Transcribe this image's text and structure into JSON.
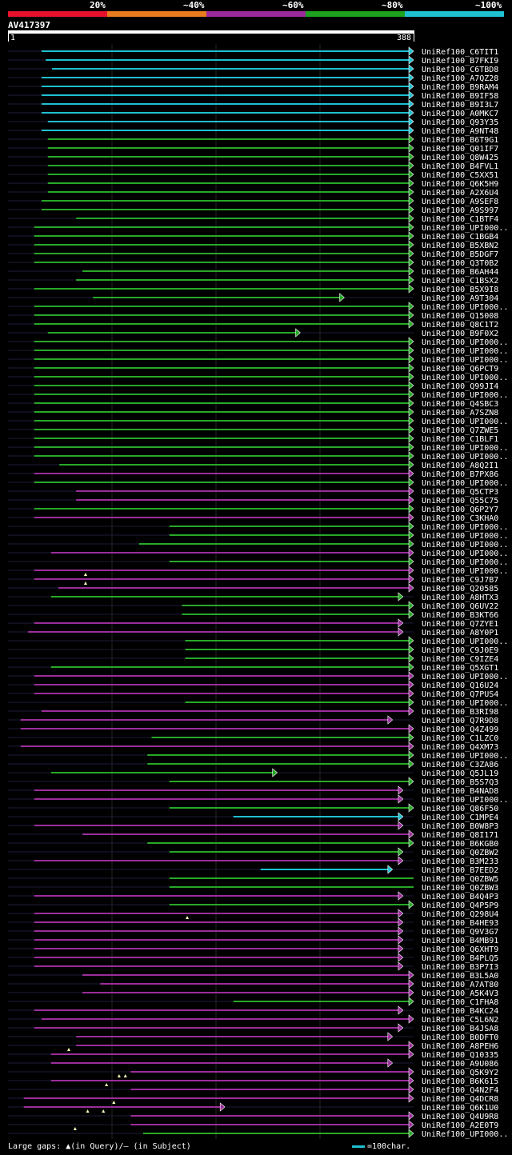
{
  "legend": {
    "colors": [
      "#e8112d",
      "#e87b1e",
      "#9b2a9b",
      "#1ea11e",
      "#1fc0d0"
    ],
    "labels": [
      "20%",
      "~40%",
      "~60%",
      "~80%",
      "~100%"
    ]
  },
  "query": {
    "name": "AV417397",
    "start": "1",
    "end": "388",
    "length": 388
  },
  "identity_colors": {
    "cyan": "#1fc0d0",
    "green": "#28a828",
    "magenta": "#9b2d9b",
    "dark": "#1c1c3a",
    "gap": "#ffffc0"
  },
  "hits": [
    {
      "name": "UniRef100_C6TIT1",
      "s": 33,
      "e": 388,
      "c": "cyan",
      "f": 1
    },
    {
      "name": "UniRef100_B7FKI9",
      "s": 37,
      "e": 388,
      "c": "cyan",
      "f": 1
    },
    {
      "name": "UniRef100_C6TBD8",
      "s": 43,
      "e": 388,
      "c": "cyan",
      "f": 1
    },
    {
      "name": "UniRef100_A7QZ28",
      "s": 33,
      "e": 388,
      "c": "cyan",
      "f": 1
    },
    {
      "name": "UniRef100_B9RAM4",
      "s": 33,
      "e": 388,
      "c": "cyan",
      "f": 1
    },
    {
      "name": "UniRef100_B9IF58",
      "s": 33,
      "e": 388,
      "c": "cyan",
      "f": 1
    },
    {
      "name": "UniRef100_B9I3L7",
      "s": 33,
      "e": 388,
      "c": "cyan",
      "f": 1
    },
    {
      "name": "UniRef100_A0MKC7",
      "s": 33,
      "e": 388,
      "c": "cyan",
      "f": 1
    },
    {
      "name": "UniRef100_Q93Y35",
      "s": 39,
      "e": 388,
      "c": "cyan",
      "f": 1
    },
    {
      "name": "UniRef100_A9NT48",
      "s": 33,
      "e": 388,
      "c": "cyan",
      "f": 1
    },
    {
      "name": "UniRef100_B6T9G1",
      "s": 39,
      "e": 388,
      "c": "green",
      "f": 1
    },
    {
      "name": "UniRef100_Q01IF7",
      "s": 39,
      "e": 388,
      "c": "green",
      "f": 1
    },
    {
      "name": "UniRef100_Q8W425",
      "s": 39,
      "e": 388,
      "c": "green",
      "f": 1
    },
    {
      "name": "UniRef100_B4FVL1",
      "s": 39,
      "e": 388,
      "c": "green",
      "f": 1
    },
    {
      "name": "UniRef100_C5XX51",
      "s": 39,
      "e": 388,
      "c": "green",
      "f": 1
    },
    {
      "name": "UniRef100_Q6K5H9",
      "s": 39,
      "e": 388,
      "c": "green",
      "f": 1
    },
    {
      "name": "UniRef100_A2X6U4",
      "s": 39,
      "e": 388,
      "c": "green",
      "f": 1
    },
    {
      "name": "UniRef100_A9SEF8",
      "s": 33,
      "e": 388,
      "c": "green",
      "f": 1
    },
    {
      "name": "UniRef100_A9S997",
      "s": 33,
      "e": 388,
      "c": "green",
      "f": 1
    },
    {
      "name": "UniRef100_C1BTF4",
      "s": 66,
      "e": 388,
      "c": "green",
      "f": 1
    },
    {
      "name": "UniRef100_UPI000..",
      "s": 26,
      "e": 388,
      "c": "green",
      "f": 1
    },
    {
      "name": "UniRef100_C1BGB4",
      "s": 26,
      "e": 388,
      "c": "green",
      "f": 1
    },
    {
      "name": "UniRef100_B5XBN2",
      "s": 26,
      "e": 388,
      "c": "green",
      "f": 1
    },
    {
      "name": "UniRef100_B5DGF7",
      "s": 26,
      "e": 388,
      "c": "green",
      "f": 1
    },
    {
      "name": "UniRef100_Q3T0B2",
      "s": 26,
      "e": 388,
      "c": "green",
      "f": 1
    },
    {
      "name": "UniRef100_B6AH44",
      "s": 72,
      "e": 388,
      "c": "green",
      "f": 1
    },
    {
      "name": "UniRef100_C1BSX2",
      "s": 66,
      "e": 388,
      "c": "green",
      "f": 1
    },
    {
      "name": "UniRef100_B5X9I8",
      "s": 26,
      "e": 388,
      "c": "green",
      "f": 1
    },
    {
      "name": "UniRef100_A9T304",
      "s": 82,
      "e": 322,
      "c": "green",
      "f": 1
    },
    {
      "name": "UniRef100_UPI000..",
      "s": 26,
      "e": 388,
      "c": "green",
      "f": 1
    },
    {
      "name": "UniRef100_Q15008",
      "s": 26,
      "e": 388,
      "c": "green",
      "f": 1
    },
    {
      "name": "UniRef100_Q8C1T2",
      "s": 26,
      "e": 388,
      "c": "green",
      "f": 1
    },
    {
      "name": "UniRef100_B9F0X2",
      "s": 39,
      "e": 280,
      "c": "green",
      "f": 1
    },
    {
      "name": "UniRef100_UPI000..",
      "s": 26,
      "e": 388,
      "c": "green",
      "f": 1
    },
    {
      "name": "UniRef100_UPI000..",
      "s": 26,
      "e": 388,
      "c": "green",
      "f": 1
    },
    {
      "name": "UniRef100_UPI000..",
      "s": 26,
      "e": 388,
      "c": "green",
      "f": 1
    },
    {
      "name": "UniRef100_Q6PCT9",
      "s": 26,
      "e": 388,
      "c": "green",
      "f": 1
    },
    {
      "name": "UniRef100_UPI000..",
      "s": 26,
      "e": 388,
      "c": "green",
      "f": 1
    },
    {
      "name": "UniRef100_Q99JI4",
      "s": 26,
      "e": 388,
      "c": "green",
      "f": 1
    },
    {
      "name": "UniRef100_UPI000..",
      "s": 26,
      "e": 388,
      "c": "green",
      "f": 1
    },
    {
      "name": "UniRef100_Q4SBC3",
      "s": 26,
      "e": 388,
      "c": "green",
      "f": 1
    },
    {
      "name": "UniRef100_A7SZN8",
      "s": 26,
      "e": 388,
      "c": "green",
      "f": 1
    },
    {
      "name": "UniRef100_UPI000..",
      "s": 26,
      "e": 388,
      "c": "green",
      "f": 1
    },
    {
      "name": "UniRef100_Q7ZWE5",
      "s": 26,
      "e": 388,
      "c": "green",
      "f": 1
    },
    {
      "name": "UniRef100_C1BLF1",
      "s": 26,
      "e": 388,
      "c": "green",
      "f": 1
    },
    {
      "name": "UniRef100_UPI000..",
      "s": 26,
      "e": 388,
      "c": "green",
      "f": 1
    },
    {
      "name": "UniRef100_UPI000..",
      "s": 26,
      "e": 388,
      "c": "green",
      "f": 1
    },
    {
      "name": "UniRef100_A8Q2I1",
      "s": 50,
      "e": 388,
      "c": "green",
      "f": 1
    },
    {
      "name": "UniRef100_B7PX86",
      "s": 26,
      "e": 388,
      "c": "magenta",
      "f": 1
    },
    {
      "name": "UniRef100_UPI000..",
      "s": 26,
      "e": 388,
      "c": "green",
      "f": 1
    },
    {
      "name": "UniRef100_Q5CTP3",
      "s": 66,
      "e": 388,
      "c": "magenta",
      "f": 1
    },
    {
      "name": "UniRef100_Q55C75",
      "s": 66,
      "e": 388,
      "c": "magenta",
      "f": 1
    },
    {
      "name": "UniRef100_Q6P2Y7",
      "s": 26,
      "e": 388,
      "c": "green",
      "f": 1
    },
    {
      "name": "UniRef100_C3KHA0",
      "s": 26,
      "e": 388,
      "c": "magenta",
      "f": 1
    },
    {
      "name": "UniRef100_UPI000..",
      "s": 155,
      "e": 388,
      "c": "green",
      "f": 1
    },
    {
      "name": "UniRef100_UPI000..",
      "s": 155,
      "e": 388,
      "c": "green",
      "f": 1
    },
    {
      "name": "UniRef100_UPI000..",
      "s": 126,
      "e": 388,
      "c": "green",
      "f": 1
    },
    {
      "name": "UniRef100_UPI000..",
      "s": 42,
      "e": 388,
      "c": "magenta",
      "f": 1
    },
    {
      "name": "UniRef100_UPI000..",
      "s": 155,
      "e": 388,
      "c": "green",
      "f": 1
    },
    {
      "name": "UniRef100_UPI000..",
      "s": 26,
      "e": 388,
      "c": "magenta",
      "f": 1
    },
    {
      "name": "UniRef100_C9J7B7",
      "s": 26,
      "e": 388,
      "c": "magenta",
      "f": 1
    },
    {
      "name": "UniRef100_Q20585",
      "s": 49,
      "e": 388,
      "c": "magenta",
      "f": 1
    },
    {
      "name": "UniRef100_A8HTX3",
      "s": 42,
      "e": 378,
      "c": "green",
      "f": 1
    },
    {
      "name": "UniRef100_Q6UV22",
      "s": 167,
      "e": 388,
      "c": "green",
      "f": 1
    },
    {
      "name": "UniRef100_B3KT66",
      "s": 167,
      "e": 388,
      "c": "green",
      "f": 1
    },
    {
      "name": "UniRef100_Q7ZYE1",
      "s": 26,
      "e": 378,
      "c": "magenta",
      "f": 1
    },
    {
      "name": "UniRef100_A8Y0P1",
      "s": 20,
      "e": 378,
      "c": "magenta",
      "f": 1
    },
    {
      "name": "UniRef100_UPI000..",
      "s": 170,
      "e": 388,
      "c": "green",
      "f": 1
    },
    {
      "name": "UniRef100_C9J0E9",
      "s": 170,
      "e": 388,
      "c": "green",
      "f": 1
    },
    {
      "name": "UniRef100_C9IZE4",
      "s": 170,
      "e": 388,
      "c": "green",
      "f": 1
    },
    {
      "name": "UniRef100_Q5XGT1",
      "s": 42,
      "e": 388,
      "c": "green",
      "f": 1
    },
    {
      "name": "UniRef100_UPI000..",
      "s": 26,
      "e": 388,
      "c": "magenta",
      "f": 1
    },
    {
      "name": "UniRef100_Q16U24",
      "s": 26,
      "e": 388,
      "c": "magenta",
      "f": 1
    },
    {
      "name": "UniRef100_Q7PUS4",
      "s": 26,
      "e": 388,
      "c": "magenta",
      "f": 1
    },
    {
      "name": "UniRef100_UPI000..",
      "s": 170,
      "e": 388,
      "c": "green",
      "f": 1
    },
    {
      "name": "UniRef100_B3RI98",
      "s": 33,
      "e": 388,
      "c": "magenta",
      "f": 1
    },
    {
      "name": "UniRef100_Q7R9D8",
      "s": 13,
      "e": 368,
      "c": "magenta",
      "f": 1
    },
    {
      "name": "UniRef100_Q4Z499",
      "s": 13,
      "e": 388,
      "c": "magenta",
      "f": 1
    },
    {
      "name": "UniRef100_C1LZC0",
      "s": 138,
      "e": 388,
      "c": "green",
      "f": 1
    },
    {
      "name": "UniRef100_Q4XM73",
      "s": 13,
      "e": 388,
      "c": "magenta",
      "f": 1
    },
    {
      "name": "UniRef100_UPI000..",
      "s": 134,
      "e": 388,
      "c": "green",
      "f": 1
    },
    {
      "name": "UniRef100_C3ZA86",
      "s": 134,
      "e": 388,
      "c": "green",
      "f": 1
    },
    {
      "name": "UniRef100_Q5JL19",
      "s": 42,
      "e": 258,
      "c": "green",
      "f": 1
    },
    {
      "name": "UniRef100_B5S7Q3",
      "s": 155,
      "e": 388,
      "c": "green",
      "f": 1
    },
    {
      "name": "UniRef100_B4NAD8",
      "s": 26,
      "e": 378,
      "c": "magenta",
      "f": 1
    },
    {
      "name": "UniRef100_UPI000..",
      "s": 26,
      "e": 378,
      "c": "magenta",
      "f": 1
    },
    {
      "name": "UniRef100_Q86F50",
      "s": 155,
      "e": 388,
      "c": "green",
      "f": 1
    },
    {
      "name": "UniRef100_C1MPE4",
      "s": 216,
      "e": 378,
      "c": "cyan",
      "f": 1
    },
    {
      "name": "UniRef100_B0W8P3",
      "s": 26,
      "e": 378,
      "c": "magenta",
      "f": 1
    },
    {
      "name": "UniRef100_Q8I171",
      "s": 72,
      "e": 388,
      "c": "magenta",
      "f": 1
    },
    {
      "name": "UniRef100_B6KGB0",
      "s": 134,
      "e": 388,
      "c": "green",
      "f": 1
    },
    {
      "name": "UniRef100_Q0ZBW2",
      "s": 155,
      "e": 378,
      "c": "green",
      "f": 1
    },
    {
      "name": "UniRef100_B3M233",
      "s": 26,
      "e": 378,
      "c": "magenta",
      "f": 1
    },
    {
      "name": "UniRef100_B7EED2",
      "s": 242,
      "e": 368,
      "c": "cyan",
      "f": 1
    },
    {
      "name": "UniRef100_Q0ZBW5",
      "s": 155,
      "e": 388,
      "c": "green",
      "f": 0
    },
    {
      "name": "UniRef100_Q0ZBW3",
      "s": 155,
      "e": 388,
      "c": "green",
      "f": 0
    },
    {
      "name": "UniRef100_B4Q4P3",
      "s": 26,
      "e": 378,
      "c": "magenta",
      "f": 1
    },
    {
      "name": "UniRef100_Q4P5P9",
      "s": 155,
      "e": 388,
      "c": "green",
      "f": 1
    },
    {
      "name": "UniRef100_Q298U4",
      "s": 26,
      "e": 378,
      "c": "magenta",
      "f": 1
    },
    {
      "name": "UniRef100_B4HE93",
      "s": 26,
      "e": 378,
      "c": "magenta",
      "f": 1
    },
    {
      "name": "UniRef100_Q9V3G7",
      "s": 26,
      "e": 378,
      "c": "magenta",
      "f": 1
    },
    {
      "name": "UniRef100_B4MB91",
      "s": 26,
      "e": 378,
      "c": "magenta",
      "f": 1
    },
    {
      "name": "UniRef100_Q6XHT9",
      "s": 26,
      "e": 378,
      "c": "magenta",
      "f": 1
    },
    {
      "name": "UniRef100_B4PLQ5",
      "s": 26,
      "e": 378,
      "c": "magenta",
      "f": 1
    },
    {
      "name": "UniRef100_B3P7I3",
      "s": 26,
      "e": 378,
      "c": "magenta",
      "f": 1
    },
    {
      "name": "UniRef100_B3L5A0",
      "s": 72,
      "e": 388,
      "c": "magenta",
      "f": 1
    },
    {
      "name": "UniRef100_A7AT80",
      "s": 89,
      "e": 388,
      "c": "magenta",
      "f": 1
    },
    {
      "name": "UniRef100_A5K4V3",
      "s": 72,
      "e": 388,
      "c": "magenta",
      "f": 1
    },
    {
      "name": "UniRef100_C1FHA8",
      "s": 216,
      "e": 388,
      "c": "green",
      "f": 1
    },
    {
      "name": "UniRef100_B4KC24",
      "s": 26,
      "e": 378,
      "c": "magenta",
      "f": 1
    },
    {
      "name": "UniRef100_C5L6N2",
      "s": 33,
      "e": 388,
      "c": "magenta",
      "f": 1
    },
    {
      "name": "UniRef100_B4JSA8",
      "s": 26,
      "e": 378,
      "c": "magenta",
      "f": 1
    },
    {
      "name": "UniRef100_B0DFT0",
      "s": 66,
      "e": 368,
      "c": "magenta",
      "f": 1
    },
    {
      "name": "UniRef100_A8PEH6",
      "s": 66,
      "e": 388,
      "c": "magenta",
      "f": 1
    },
    {
      "name": "UniRef100_Q10335",
      "s": 42,
      "e": 388,
      "c": "magenta",
      "f": 1
    },
    {
      "name": "UniRef100_A9U086",
      "s": 42,
      "e": 368,
      "c": "magenta",
      "f": 1
    },
    {
      "name": "UniRef100_Q5K9Y2",
      "s": 118,
      "e": 388,
      "c": "magenta",
      "f": 1
    },
    {
      "name": "UniRef100_B6K615",
      "s": 42,
      "e": 388,
      "c": "magenta",
      "f": 1
    },
    {
      "name": "UniRef100_Q4N2F4",
      "s": 118,
      "e": 388,
      "c": "magenta",
      "f": 1
    },
    {
      "name": "UniRef100_Q4DCR8",
      "s": 16,
      "e": 388,
      "c": "magenta",
      "f": 1
    },
    {
      "name": "UniRef100_Q6K1U0",
      "s": 16,
      "e": 208,
      "c": "magenta",
      "f": 1
    },
    {
      "name": "UniRef100_Q4U9R8",
      "s": 118,
      "e": 388,
      "c": "magenta",
      "f": 1
    },
    {
      "name": "UniRef100_A2E0T9",
      "s": 118,
      "e": 388,
      "c": "magenta",
      "f": 1
    },
    {
      "name": "UniRef100_UPI000..",
      "s": 130,
      "e": 388,
      "c": "green",
      "f": 1
    }
  ],
  "gap_markers": [
    {
      "row": 59,
      "pos": 75
    },
    {
      "row": 60,
      "pos": 75
    },
    {
      "row": 98,
      "pos": 172
    },
    {
      "row": 113,
      "pos": 59
    },
    {
      "row": 116,
      "pos": 107
    },
    {
      "row": 116,
      "pos": 113
    },
    {
      "row": 117,
      "pos": 95
    },
    {
      "row": 119,
      "pos": 102
    },
    {
      "row": 120,
      "pos": 77
    },
    {
      "row": 120,
      "pos": 92
    },
    {
      "row": 122,
      "pos": 65
    }
  ],
  "footer": {
    "text": "Large gaps: ▲(in Query)/– (in Subject)",
    "scale": "=100char."
  }
}
